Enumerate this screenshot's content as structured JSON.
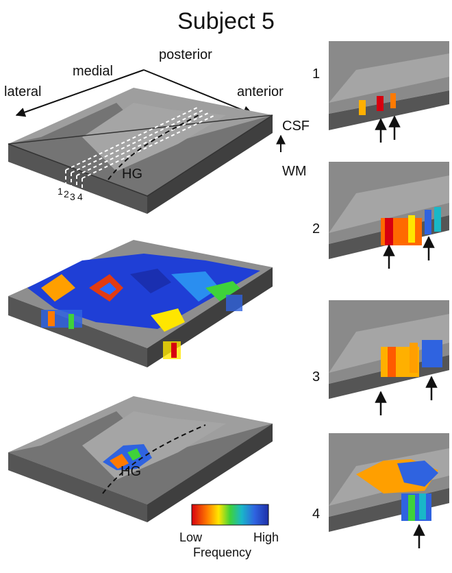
{
  "title": "Subject 5",
  "orientation": {
    "lateral": "lateral",
    "medial": "medial",
    "posterior": "posterior",
    "anterior": "anterior"
  },
  "depth": {
    "top": "CSF",
    "bottom": "WM"
  },
  "landmark": "HG",
  "slice_markers": [
    "1",
    "2",
    "3",
    "4"
  ],
  "slice_panels": [
    {
      "label": "1",
      "arrow_count": 2
    },
    {
      "label": "2",
      "arrow_count": 2
    },
    {
      "label": "3",
      "arrow_count": 2
    },
    {
      "label": "4",
      "arrow_count": 1
    }
  ],
  "colorbar": {
    "low": "Low",
    "high": "High",
    "caption": "Frequency",
    "colors": [
      "#d7000f",
      "#ff7a00",
      "#ffe600",
      "#3fd23a",
      "#19b7c8",
      "#2f63e0",
      "#1e2fa8"
    ]
  },
  "colors": {
    "cortex_light": "#9e9e9e",
    "cortex_dark": "#6a6a6a",
    "slab_edge": "#4a4a4a",
    "map_low": "#d7000f",
    "map_high": "#1a2fb0"
  }
}
